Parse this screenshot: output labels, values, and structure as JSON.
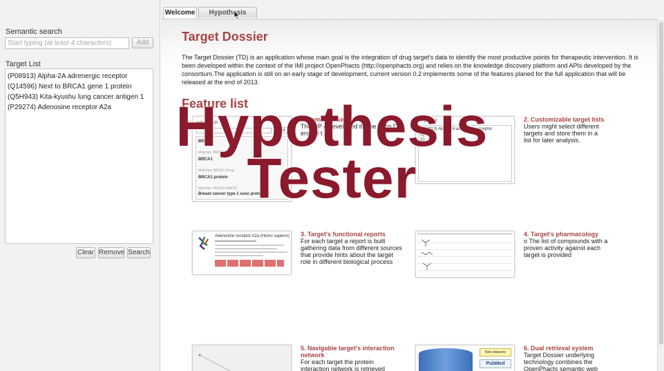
{
  "sidebar": {
    "search_label": "Semantic search",
    "search_placeholder": "Start typing (at least 4 characters)",
    "add_label": "Add",
    "target_list_label": "Target List",
    "targets": [
      "(P08913) Alpha-2A adrenergic receptor",
      "(Q14596) Next to BRCA1 gene 1 protein",
      "(Q5H943) Kita-kyushu lung cancer antigen 1",
      "(P29274) Adenosine receptor A2a"
    ],
    "clear_label": "Clear",
    "remove_label": "Remove",
    "search_label_btn": "Search"
  },
  "tabs": {
    "welcome": "Welcome",
    "hypothesis": "Hypothesis tester"
  },
  "main": {
    "title": "Target Dossier",
    "intro": "The Target Dossier (TD) is an application whose main goal is the integration of drug target's data to identify the most productive points for therapeutic intervention. It is been developed within the context of the IMI project OpenPhacts (http://openphacts.org) and relies on the knowledge discovery platform and APIs developed by the consortium.The application is still on an early stage of development, current version 0.2 implements some of the features planed for the full application that will be released at the end of 2013.",
    "feature_list_title": "Feature list",
    "features": [
      {
        "title": "1. Semantic sea",
        "desc": "The OP A t eveloped ith the us to D ers t D t se."
      },
      {
        "title": "2. Customizable target lists",
        "desc": "Users might select different targets and store them in a list for later analysis."
      },
      {
        "title": "3. Target's functional reports",
        "desc": "For each target a report is built gathering data from different sources that provide hints about the target role in different biological process"
      },
      {
        "title": "4. Target's pharmacology",
        "desc": "o The list of compounds with a proven activity against each target is provided"
      },
      {
        "title": "5. Navigable target's interaction network",
        "desc": "For each target the protein interaction network is retrieved"
      },
      {
        "title": "6. Dual retrieval system",
        "desc": "Target Dossier underlying technology combines the OpenPhacts semantic web"
      }
    ],
    "thumb1": {
      "header": "antic search",
      "add": "Add",
      "rows": [
        "BRCA1",
        "BRCA1",
        "BRCA1 protein"
      ],
      "matches": [
        "Matches: BRCA1 (Frag",
        "Matches: BRCA1 (Frag",
        "Matches: BRCA1 RNF53"
      ],
      "last": "Breast cancer type 1 susc protein"
    },
    "thumb2": {
      "header": "Target List",
      "rows": [
        "(P08913) Alpha-2A adrenergic receptor",
        "(Q",
        "(Q",
        "(P"
      ]
    },
    "thumb3": {
      "header": "Adenosine receptor A2a (Homo sapiens)"
    },
    "thumb6": {
      "label1": "New datasets",
      "label2": "PubMed"
    }
  },
  "overlay": {
    "line1": "Hypothesis",
    "line2": "Tester"
  },
  "colors": {
    "accent": "#a84444",
    "overlay": "#8a1a2c"
  }
}
